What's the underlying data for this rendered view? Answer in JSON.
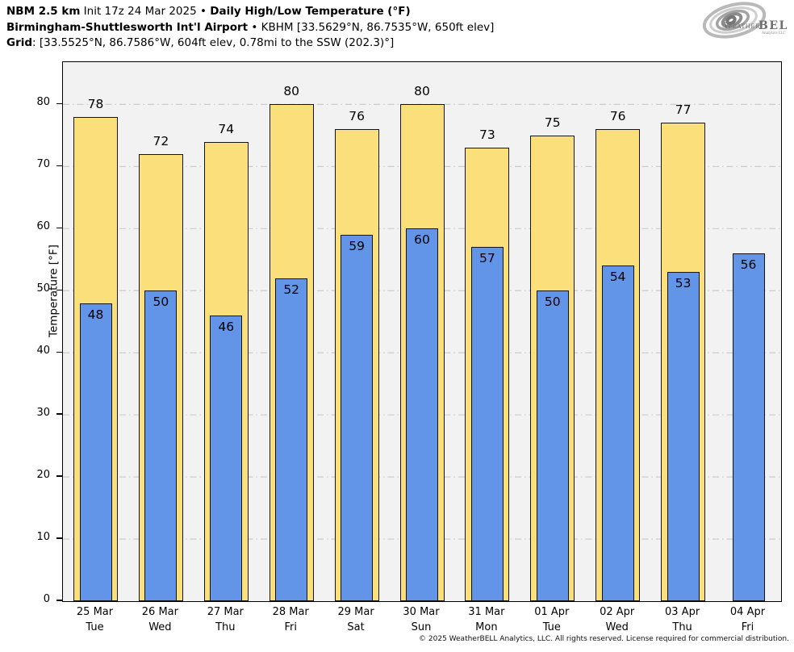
{
  "header": {
    "lines": [
      [
        {
          "text": "NBM 2.5 km",
          "bold": true
        },
        {
          "text": " Init 17z 24 Mar 2025 • ",
          "bold": false
        },
        {
          "text": "Daily High/Low Temperature (°F)",
          "bold": true
        }
      ],
      [
        {
          "text": "Birmingham-Shuttlesworth Int'l Airport",
          "bold": true
        },
        {
          "text": " • KBHM [33.5629°N, 86.7535°W, 650ft elev]",
          "bold": false
        }
      ],
      [
        {
          "text": "Grid",
          "bold": true
        },
        {
          "text": ": [33.5525°N, 86.7586°W, 604ft elev, 0.78mi to the SSW (202.3)°]",
          "bold": false
        }
      ]
    ]
  },
  "logo": {
    "word_weather": "Weather",
    "word_bell": "BELL",
    "subtext": "Analytics LLC"
  },
  "chart_data": {
    "type": "bar",
    "title": "NBM 2.5 km Daily High/Low Temperature (°F) — Birmingham-Shuttlesworth Int'l Airport (KBHM)",
    "ylabel": "Temperature [°F]",
    "xlabel": "",
    "ylim": [
      0,
      86.8
    ],
    "yticks": [
      0,
      10,
      20,
      30,
      40,
      50,
      60,
      70,
      80
    ],
    "grid": "dashed horizontal lines at each ytick",
    "legend": "none",
    "categories": [
      {
        "date": "25 Mar",
        "day": "Tue"
      },
      {
        "date": "26 Mar",
        "day": "Wed"
      },
      {
        "date": "27 Mar",
        "day": "Thu"
      },
      {
        "date": "28 Mar",
        "day": "Fri"
      },
      {
        "date": "29 Mar",
        "day": "Sat"
      },
      {
        "date": "30 Mar",
        "day": "Sun"
      },
      {
        "date": "31 Mar",
        "day": "Mon"
      },
      {
        "date": "01 Apr",
        "day": "Tue"
      },
      {
        "date": "02 Apr",
        "day": "Wed"
      },
      {
        "date": "03 Apr",
        "day": "Thu"
      },
      {
        "date": "04 Apr",
        "day": "Fri"
      }
    ],
    "series": [
      {
        "name": "High",
        "color": "#FBDF7B",
        "values": [
          78,
          72,
          74,
          80,
          76,
          80,
          73,
          75,
          76,
          77,
          null
        ]
      },
      {
        "name": "Low",
        "color": "#6295E8",
        "values": [
          48,
          50,
          46,
          52,
          59,
          60,
          57,
          50,
          54,
          53,
          56
        ]
      }
    ]
  },
  "colors": {
    "high_bar": "#FBDF7B",
    "low_bar": "#6295E8",
    "bar_outline": "#141414",
    "plot_background": "#f2f2f2",
    "gridline": "#c8c8c8",
    "page_background": "#ffffff"
  },
  "footer": "© 2025 WeatherBELL Analytics, LLC. All rights reserved. License required for commercial distribution."
}
